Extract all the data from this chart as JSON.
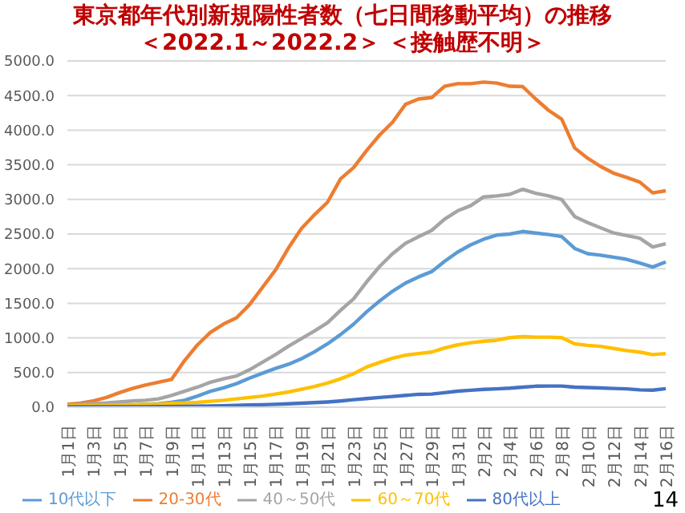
{
  "chart_data": {
    "type": "line",
    "title": "東京都年代別新規陽性者数（七日間移動平均）の推移",
    "subtitle": "＜2022.1～2022.2＞ ＜接触歴不明＞",
    "categories": [
      "1月1日",
      null,
      "1月3日",
      null,
      "1月5日",
      null,
      "1月7日",
      null,
      "1月9日",
      null,
      "1月11日",
      null,
      "1月13日",
      null,
      "1月15日",
      null,
      "1月17日",
      null,
      "1月19日",
      null,
      "1月21日",
      null,
      "1月23日",
      null,
      "1月25日",
      null,
      "1月27日",
      null,
      "1月29日",
      null,
      "1月31日",
      null,
      "2月2日",
      null,
      "2月4日",
      null,
      "2月6日",
      null,
      "2月8日",
      null,
      "2月10日",
      null,
      "2月12日",
      null,
      "2月14日",
      null,
      "2月16日"
    ],
    "series": [
      {
        "name": "10代以下",
        "color": "#5b9bd5",
        "values": [
          10,
          12,
          15,
          20,
          25,
          30,
          40,
          50,
          70,
          100,
          160,
          230,
          280,
          340,
          420,
          490,
          560,
          620,
          700,
          800,
          915,
          1049,
          1198,
          1376,
          1533,
          1674,
          1793,
          1882,
          1957,
          2106,
          2240,
          2344,
          2426,
          2485,
          2500,
          2537,
          2515,
          2493,
          2463,
          2292,
          2217,
          2195,
          2165,
          2135,
          2083,
          2024,
          2098
        ]
      },
      {
        "name": "20-30代",
        "color": "#ed7d31",
        "values": [
          40,
          60,
          90,
          140,
          210,
          270,
          320,
          360,
          400,
          670,
          900,
          1080,
          1200,
          1290,
          1480,
          1730,
          1980,
          2300,
          2580,
          2780,
          2960,
          3297,
          3460,
          3705,
          3929,
          4115,
          4375,
          4450,
          4470,
          4635,
          4672,
          4672,
          4695,
          4680,
          4635,
          4630,
          4450,
          4285,
          4160,
          3743,
          3594,
          3475,
          3378,
          3318,
          3251,
          3095,
          3125
        ]
      },
      {
        "name": "40～50代",
        "color": "#a5a5a5",
        "values": [
          30,
          40,
          50,
          60,
          75,
          90,
          100,
          120,
          170,
          230,
          290,
          360,
          410,
          450,
          540,
          650,
          760,
          880,
          990,
          1100,
          1220,
          1399,
          1563,
          1808,
          2031,
          2217,
          2366,
          2463,
          2552,
          2716,
          2835,
          2909,
          3036,
          3051,
          3073,
          3147,
          3088,
          3051,
          2999,
          2753,
          2664,
          2589,
          2515,
          2478,
          2440,
          2314,
          2359
        ]
      },
      {
        "name": "60～70代",
        "color": "#ffc000",
        "values": [
          20,
          22,
          25,
          28,
          30,
          35,
          40,
          45,
          55,
          60,
          70,
          85,
          100,
          120,
          140,
          160,
          190,
          220,
          260,
          300,
          349,
          409,
          484,
          580,
          647,
          707,
          751,
          774,
          796,
          855,
          900,
          930,
          952,
          967,
          1004,
          1019,
          1011,
          1011,
          1004,
          915,
          893,
          878,
          848,
          818,
          796,
          759,
          774
        ]
      },
      {
        "name": "80代以上",
        "color": "#4472c4",
        "values": [
          5,
          5,
          5,
          5,
          6,
          6,
          7,
          8,
          10,
          12,
          15,
          18,
          22,
          28,
          32,
          36,
          42,
          50,
          58,
          66,
          76,
          90,
          108,
          125,
          140,
          155,
          170,
          186,
          190,
          210,
          231,
          245,
          258,
          265,
          275,
          290,
          303,
          305,
          305,
          290,
          283,
          278,
          270,
          265,
          250,
          246,
          268
        ]
      }
    ],
    "ylim": [
      0,
      5000
    ],
    "yticks": [
      {
        "value": 0,
        "label": "0.0"
      },
      {
        "value": 500,
        "label": "500.0"
      },
      {
        "value": 1000,
        "label": "1000.0"
      },
      {
        "value": 1500,
        "label": "1500.0"
      },
      {
        "value": 2000,
        "label": "2000.0"
      },
      {
        "value": 2500,
        "label": "2500.0"
      },
      {
        "value": 3000,
        "label": "3000.0"
      },
      {
        "value": 3500,
        "label": "3500.0"
      },
      {
        "value": 4000,
        "label": "4000.0"
      },
      {
        "value": 4500,
        "label": "4500.0"
      },
      {
        "value": 5000,
        "label": "5000.0"
      }
    ],
    "grid": "y",
    "legend": "bottom",
    "marker": "none",
    "line_style": "solid",
    "annotations": [
      "14"
    ]
  }
}
